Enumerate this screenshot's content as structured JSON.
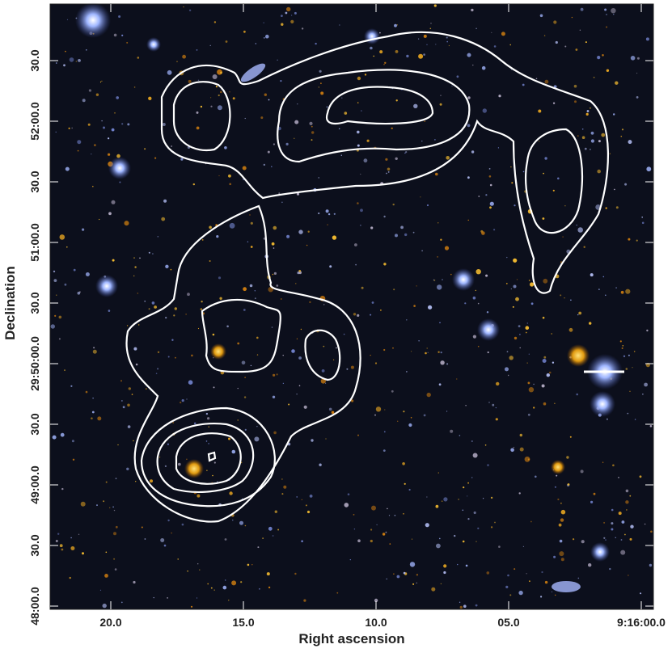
{
  "axes": {
    "x_label": "Right ascension",
    "y_label": "Declination",
    "x_ticks": [
      "20.0",
      "15.0",
      "10.0",
      "05.0",
      "9:16:00.0"
    ],
    "y_ticks": [
      "30.0",
      "52:00.0",
      "30.0",
      "51:00.0",
      "30.0",
      "29:50:00.0",
      "30.0",
      "49:00.0",
      "30.0",
      "48:00.0"
    ]
  }
}
